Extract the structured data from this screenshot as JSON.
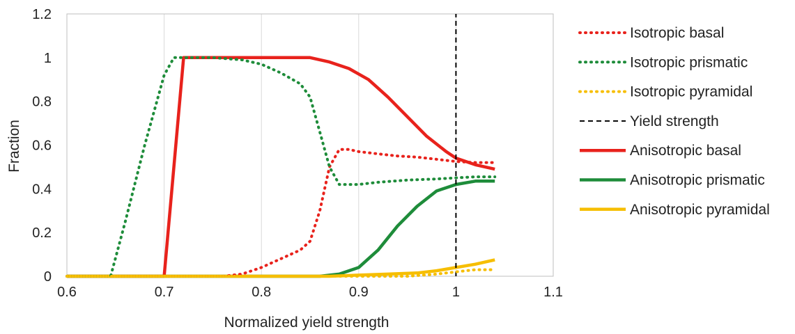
{
  "chart_data": {
    "type": "line",
    "title": "",
    "xlabel": "Normalized yield strength",
    "ylabel": "Fraction",
    "xlim": [
      0.6,
      1.1
    ],
    "ylim": [
      0,
      1.2
    ],
    "x_ticks": [
      "0.6",
      "0.7",
      "0.8",
      "0.9",
      "1",
      "1.1"
    ],
    "y_ticks": [
      "0",
      "0.2",
      "0.4",
      "0.6",
      "0.8",
      "1",
      "1.2"
    ],
    "grid": "vertical",
    "legend_position": "right",
    "series": [
      {
        "name": "Isotropic basal",
        "style": "dotted",
        "color": "#e8221c",
        "x": [
          0.6,
          0.76,
          0.78,
          0.8,
          0.82,
          0.84,
          0.85,
          0.86,
          0.87,
          0.88,
          0.89,
          0.9,
          0.92,
          0.94,
          0.96,
          0.98,
          1.0,
          1.02,
          1.04
        ],
        "y": [
          0,
          0,
          0.01,
          0.04,
          0.08,
          0.12,
          0.16,
          0.3,
          0.5,
          0.58,
          0.58,
          0.57,
          0.56,
          0.55,
          0.545,
          0.535,
          0.525,
          0.52,
          0.52
        ]
      },
      {
        "name": "Isotropic prismatic",
        "style": "dotted",
        "color": "#1e8c3a",
        "x": [
          0.6,
          0.645,
          0.66,
          0.68,
          0.7,
          0.71,
          0.72,
          0.75,
          0.78,
          0.8,
          0.82,
          0.84,
          0.85,
          0.86,
          0.87,
          0.88,
          0.9,
          0.92,
          0.95,
          0.98,
          1.0,
          1.02,
          1.04
        ],
        "y": [
          0,
          0,
          0.25,
          0.6,
          0.92,
          1.0,
          1.0,
          1.0,
          0.99,
          0.97,
          0.93,
          0.88,
          0.82,
          0.66,
          0.5,
          0.42,
          0.42,
          0.43,
          0.44,
          0.445,
          0.45,
          0.455,
          0.455
        ]
      },
      {
        "name": "Isotropic pyramidal",
        "style": "dotted",
        "color": "#f6be00",
        "x": [
          0.6,
          0.95,
          0.98,
          1.0,
          1.02,
          1.04
        ],
        "y": [
          0,
          0,
          0.01,
          0.02,
          0.03,
          0.03
        ]
      },
      {
        "name": "Yield strength",
        "style": "dashed",
        "color": "#000000",
        "x": [
          1.0,
          1.0
        ],
        "y": [
          0,
          1.2
        ]
      },
      {
        "name": "Anisotropic basal",
        "style": "solid",
        "color": "#e8221c",
        "x": [
          0.6,
          0.7,
          0.72,
          0.8,
          0.85,
          0.87,
          0.89,
          0.91,
          0.93,
          0.95,
          0.97,
          0.99,
          1.0,
          1.02,
          1.04
        ],
        "y": [
          0,
          0,
          1.0,
          1.0,
          1.0,
          0.98,
          0.95,
          0.9,
          0.82,
          0.73,
          0.64,
          0.57,
          0.54,
          0.51,
          0.49
        ]
      },
      {
        "name": "Anisotropic prismatic",
        "style": "solid",
        "color": "#1e8c3a",
        "x": [
          0.6,
          0.86,
          0.88,
          0.9,
          0.92,
          0.94,
          0.96,
          0.98,
          1.0,
          1.02,
          1.04
        ],
        "y": [
          0,
          0,
          0.01,
          0.04,
          0.12,
          0.23,
          0.32,
          0.39,
          0.42,
          0.435,
          0.435
        ]
      },
      {
        "name": "Anisotropic pyramidal",
        "style": "solid",
        "color": "#f6be00",
        "x": [
          0.6,
          0.87,
          0.9,
          0.93,
          0.96,
          0.98,
          1.0,
          1.02,
          1.04
        ],
        "y": [
          0,
          0,
          0.005,
          0.01,
          0.015,
          0.025,
          0.04,
          0.055,
          0.075
        ]
      }
    ]
  }
}
